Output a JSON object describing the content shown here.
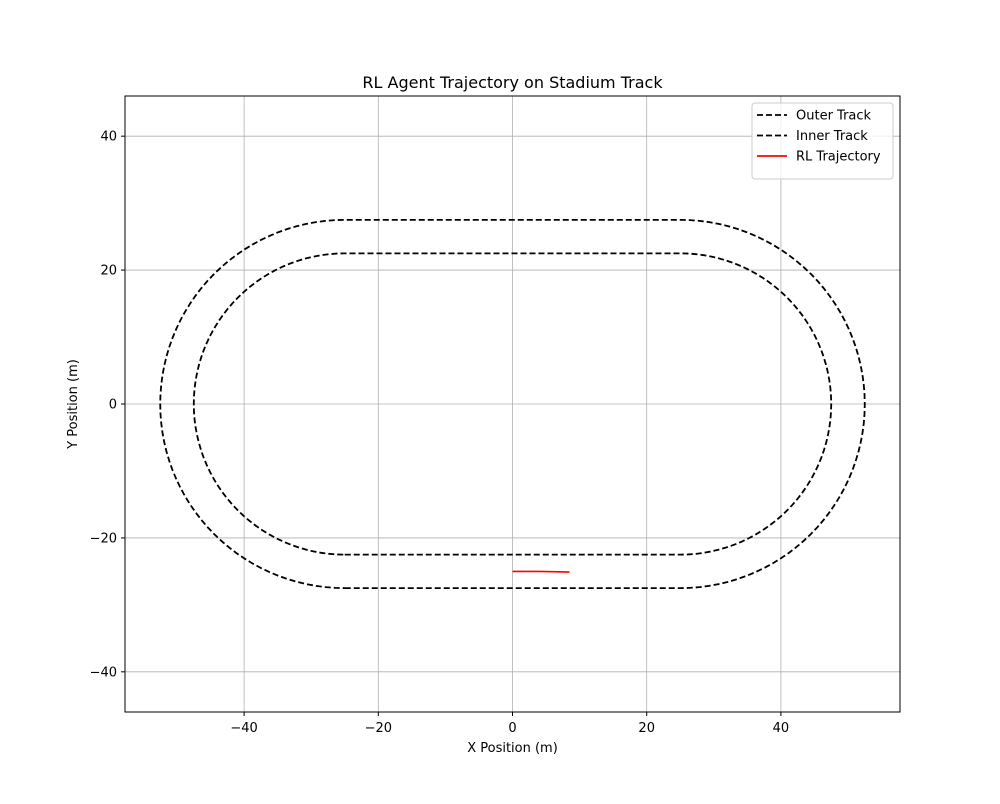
{
  "chart_data": {
    "type": "line",
    "title": "RL Agent Trajectory on Stadium Track",
    "xlabel": "X Position (m)",
    "ylabel": "Y Position (m)",
    "xlim": [
      -57.75,
      57.75
    ],
    "ylim": [
      -46.0,
      46.0
    ],
    "xticks": [
      -40,
      -20,
      0,
      20,
      40
    ],
    "yticks": [
      -40,
      -20,
      0,
      20,
      40
    ],
    "grid": true,
    "legend_position": "upper right",
    "series": [
      {
        "name": "Outer Track",
        "style": "dashed",
        "color": "#000000",
        "shape": "stadium",
        "straight_half_length": 25,
        "radius": 27.5
      },
      {
        "name": "Inner Track",
        "style": "dashed",
        "color": "#000000",
        "shape": "stadium",
        "straight_half_length": 25,
        "radius": 22.5
      },
      {
        "name": "RL Trajectory",
        "style": "solid",
        "color": "#ff0000",
        "x": [
          0,
          2,
          4,
          6,
          8.5
        ],
        "y": [
          -25,
          -25,
          -25,
          -25.05,
          -25.1
        ]
      }
    ]
  }
}
